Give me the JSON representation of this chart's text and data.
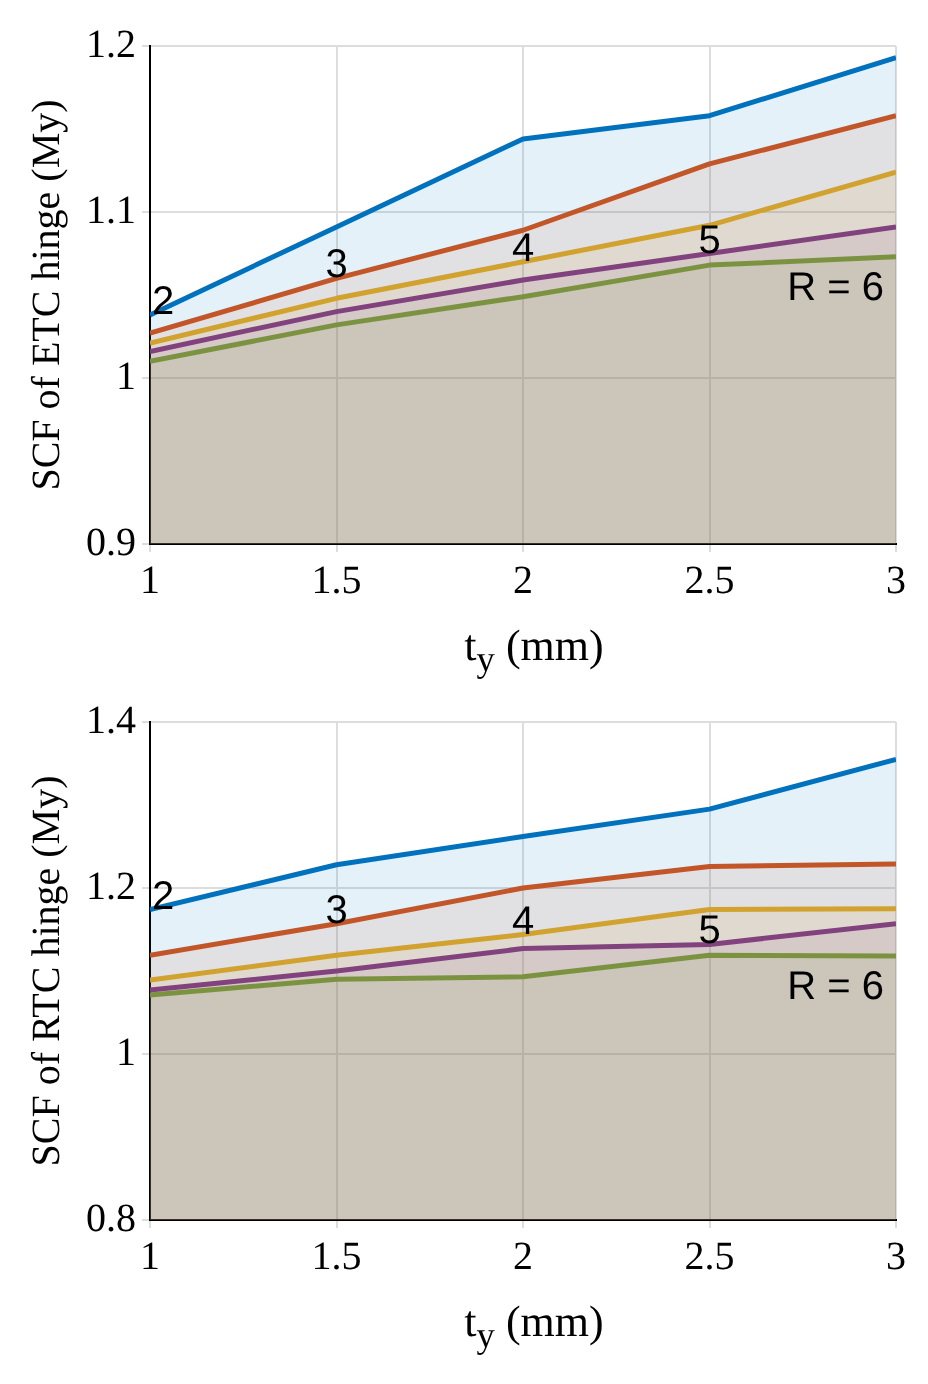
{
  "chart_data": [
    {
      "type": "area",
      "xlabel": "t$_{y}$ (mm)",
      "ylabel": "SCF of ETC hinge (My)",
      "x": [
        1,
        1.5,
        2,
        2.5,
        3
      ],
      "xlim": [
        1,
        3
      ],
      "xticks": [
        1,
        1.5,
        2,
        2.5,
        3
      ],
      "ylim": [
        0.9,
        1.2
      ],
      "yticks": [
        0.9,
        1,
        1.1,
        1.2
      ],
      "grid": true,
      "legend": false,
      "marker": "none",
      "series": [
        {
          "name": "2",
          "color": "#0072bd",
          "values": [
            1.038,
            1.091,
            1.144,
            1.158,
            1.193
          ]
        },
        {
          "name": "3",
          "color": "#d95319",
          "values": [
            1.027,
            1.06,
            1.089,
            1.129,
            1.158
          ]
        },
        {
          "name": "4",
          "color": "#edb120",
          "values": [
            1.021,
            1.048,
            1.07,
            1.092,
            1.124
          ]
        },
        {
          "name": "5",
          "color": "#7e2f8e",
          "values": [
            1.016,
            1.04,
            1.059,
            1.075,
            1.091
          ]
        },
        {
          "name": "R = 6",
          "color": "#77ac30",
          "values": [
            1.01,
            1.032,
            1.049,
            1.068,
            1.073
          ]
        }
      ]
    },
    {
      "type": "area",
      "xlabel": "t$_{y}$ (mm)",
      "ylabel": "SCF of RTC hinge (My)",
      "x": [
        1,
        1.5,
        2,
        2.5,
        3
      ],
      "xlim": [
        1,
        3
      ],
      "xticks": [
        1,
        1.5,
        2,
        2.5,
        3
      ],
      "ylim": [
        0.8,
        1.4
      ],
      "yticks": [
        0.8,
        1,
        1.2,
        1.4
      ],
      "grid": true,
      "legend": false,
      "marker": "none",
      "series": [
        {
          "name": "2",
          "color": "#0072bd",
          "values": [
            1.174,
            1.228,
            1.262,
            1.295,
            1.355
          ]
        },
        {
          "name": "3",
          "color": "#d95319",
          "values": [
            1.119,
            1.157,
            1.2,
            1.226,
            1.229
          ]
        },
        {
          "name": "4",
          "color": "#edb120",
          "values": [
            1.089,
            1.119,
            1.144,
            1.174,
            1.175
          ]
        },
        {
          "name": "5",
          "color": "#7e2f8e",
          "values": [
            1.077,
            1.1,
            1.127,
            1.132,
            1.157
          ]
        },
        {
          "name": "R = 6",
          "color": "#77ac30",
          "values": [
            1.071,
            1.09,
            1.093,
            1.119,
            1.118
          ]
        }
      ]
    }
  ]
}
